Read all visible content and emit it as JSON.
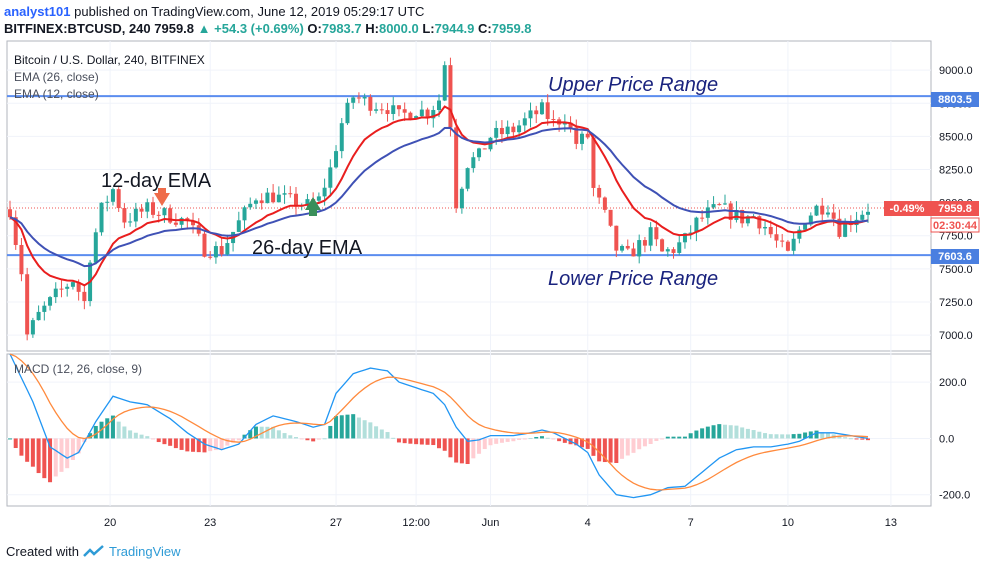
{
  "header": {
    "author": "analyst101",
    "published_text": "published on TradingView.com, June 12, 2019 05:29:17 UTC",
    "symbol_line": "BITFINEX:BTCUSD, 240",
    "last": "7959.8",
    "change": "+54.3 (+0.69%)",
    "o_label": "O:",
    "o": "7983.7",
    "h_label": "H:",
    "h": "8000.0",
    "l_label": "L:",
    "l": "7944.9",
    "c_label": "C:",
    "c": "7959.8"
  },
  "legend": {
    "title": "Bitcoin / U.S. Dollar, 240, BITFINEX",
    "ema26": "EMA (26, close)",
    "ema12": "EMA (12, close)",
    "macd": "MACD (12, 26, close, 9)"
  },
  "annotations": {
    "upper": "Upper Price Range",
    "lower": "Lower Price Range",
    "ema12_label": "12-day EMA",
    "ema26_label": "26-day EMA"
  },
  "price_badges": {
    "upper": "8803.5",
    "lower": "7603.6",
    "last": "7959.8",
    "pct": "-0.49%",
    "countdown": "02:30:44"
  },
  "footer": {
    "created_with": "Created with",
    "brand": "TradingView"
  },
  "colors": {
    "up": "#26a69a",
    "down": "#ef5350",
    "ema12": "#e91e1e",
    "ema26": "#3f51b5",
    "range_line": "#5b8def",
    "macd_line": "#2196f3",
    "signal_line": "#ff8a3d",
    "hist_up_strong": "#26a69a",
    "hist_up_weak": "#b2dfdb",
    "hist_down_strong": "#ef5350",
    "hist_down_weak": "#ffcdd2",
    "arrow_down": "#ef6c4a",
    "arrow_up": "#3a8f5a"
  },
  "chart_data": {
    "type": "candlestick",
    "price_axis": {
      "range": [
        6880,
        9220
      ],
      "ticks": [
        "9000.0",
        "8750.0",
        "8500.0",
        "8250.0",
        "8000.0",
        "7750.0",
        "7500.0",
        "7250.0",
        "7000.0"
      ],
      "tick_values": [
        9000,
        8750,
        8500,
        8250,
        8000,
        7750,
        7500,
        7250,
        7000
      ]
    },
    "macd_axis": {
      "range": [
        -240,
        300
      ],
      "ticks": [
        "200.0",
        "0.0",
        "-200.0"
      ],
      "tick_values": [
        200,
        0,
        -200
      ]
    },
    "time_axis": {
      "labels": [
        "20",
        "23",
        "27",
        "12:00",
        "Jun",
        "4",
        "7",
        "10",
        "13"
      ],
      "label_bars": [
        17.5,
        35,
        57,
        71,
        84,
        101,
        119,
        136,
        154
      ]
    },
    "upper_range": 8803.5,
    "lower_range": 7603.6,
    "last_price": 7959.8,
    "price_points": [
      [
        0,
        7950
      ],
      [
        2,
        7480
      ],
      [
        3,
        7000
      ],
      [
        5,
        7150
      ],
      [
        8,
        7300
      ],
      [
        11,
        7420
      ],
      [
        13,
        7250
      ],
      [
        14,
        7600
      ],
      [
        16,
        7950
      ],
      [
        18,
        8100
      ],
      [
        20,
        7870
      ],
      [
        24,
        7950
      ],
      [
        28,
        7900
      ],
      [
        31,
        7850
      ],
      [
        34,
        7650
      ],
      [
        37,
        7640
      ],
      [
        40,
        7850
      ],
      [
        43,
        8050
      ],
      [
        46,
        8050
      ],
      [
        50,
        8000
      ],
      [
        52,
        7980
      ],
      [
        54,
        8020
      ],
      [
        56,
        8250
      ],
      [
        58,
        8600
      ],
      [
        60,
        8800
      ],
      [
        63,
        8750
      ],
      [
        66,
        8720
      ],
      [
        68,
        8650
      ],
      [
        71,
        8700
      ],
      [
        73,
        8680
      ],
      [
        75,
        8780
      ],
      [
        76,
        9050
      ],
      [
        77,
        8600
      ],
      [
        78,
        8000
      ],
      [
        80,
        8300
      ],
      [
        82,
        8350
      ],
      [
        84,
        8500
      ],
      [
        88,
        8550
      ],
      [
        91,
        8650
      ],
      [
        93,
        8700
      ],
      [
        95,
        8600
      ],
      [
        97,
        8650
      ],
      [
        99,
        8450
      ],
      [
        101,
        8500
      ],
      [
        102,
        8100
      ],
      [
        104,
        7900
      ],
      [
        106,
        7650
      ],
      [
        108,
        7600
      ],
      [
        110,
        7680
      ],
      [
        112,
        7760
      ],
      [
        114,
        7620
      ],
      [
        116,
        7650
      ],
      [
        118,
        7720
      ],
      [
        120,
        7850
      ],
      [
        122,
        7920
      ],
      [
        124,
        7960
      ],
      [
        126,
        7920
      ],
      [
        128,
        7880
      ],
      [
        130,
        7900
      ],
      [
        132,
        7820
      ],
      [
        134,
        7700
      ],
      [
        136,
        7600
      ],
      [
        137,
        7700
      ],
      [
        139,
        7880
      ],
      [
        141,
        7960
      ],
      [
        143,
        7980
      ],
      [
        145,
        7800
      ],
      [
        147,
        7870
      ],
      [
        149,
        7930
      ],
      [
        150,
        7960
      ]
    ],
    "macd_points": [
      [
        0,
        300
      ],
      [
        4,
        130
      ],
      [
        7,
        -30
      ],
      [
        10,
        -70
      ],
      [
        12,
        -50
      ],
      [
        15,
        60
      ],
      [
        18,
        150
      ],
      [
        21,
        130
      ],
      [
        24,
        120
      ],
      [
        28,
        70
      ],
      [
        31,
        20
      ],
      [
        34,
        -20
      ],
      [
        37,
        -40
      ],
      [
        40,
        -20
      ],
      [
        43,
        50
      ],
      [
        46,
        80
      ],
      [
        50,
        60
      ],
      [
        53,
        40
      ],
      [
        55,
        50
      ],
      [
        57,
        160
      ],
      [
        60,
        230
      ],
      [
        63,
        250
      ],
      [
        66,
        240
      ],
      [
        68,
        200
      ],
      [
        71,
        180
      ],
      [
        74,
        160
      ],
      [
        76,
        120
      ],
      [
        78,
        40
      ],
      [
        80,
        -10
      ],
      [
        82,
        -5
      ],
      [
        84,
        10
      ],
      [
        88,
        10
      ],
      [
        91,
        20
      ],
      [
        93,
        30
      ],
      [
        95,
        20
      ],
      [
        97,
        0
      ],
      [
        99,
        -20
      ],
      [
        101,
        -50
      ],
      [
        103,
        -130
      ],
      [
        106,
        -200
      ],
      [
        109,
        -210
      ],
      [
        112,
        -200
      ],
      [
        115,
        -175
      ],
      [
        118,
        -170
      ],
      [
        121,
        -120
      ],
      [
        124,
        -70
      ],
      [
        127,
        -40
      ],
      [
        130,
        -30
      ],
      [
        133,
        -30
      ],
      [
        136,
        -20
      ],
      [
        138,
        -10
      ],
      [
        141,
        20
      ],
      [
        144,
        20
      ],
      [
        147,
        10
      ],
      [
        150,
        0
      ]
    ]
  }
}
